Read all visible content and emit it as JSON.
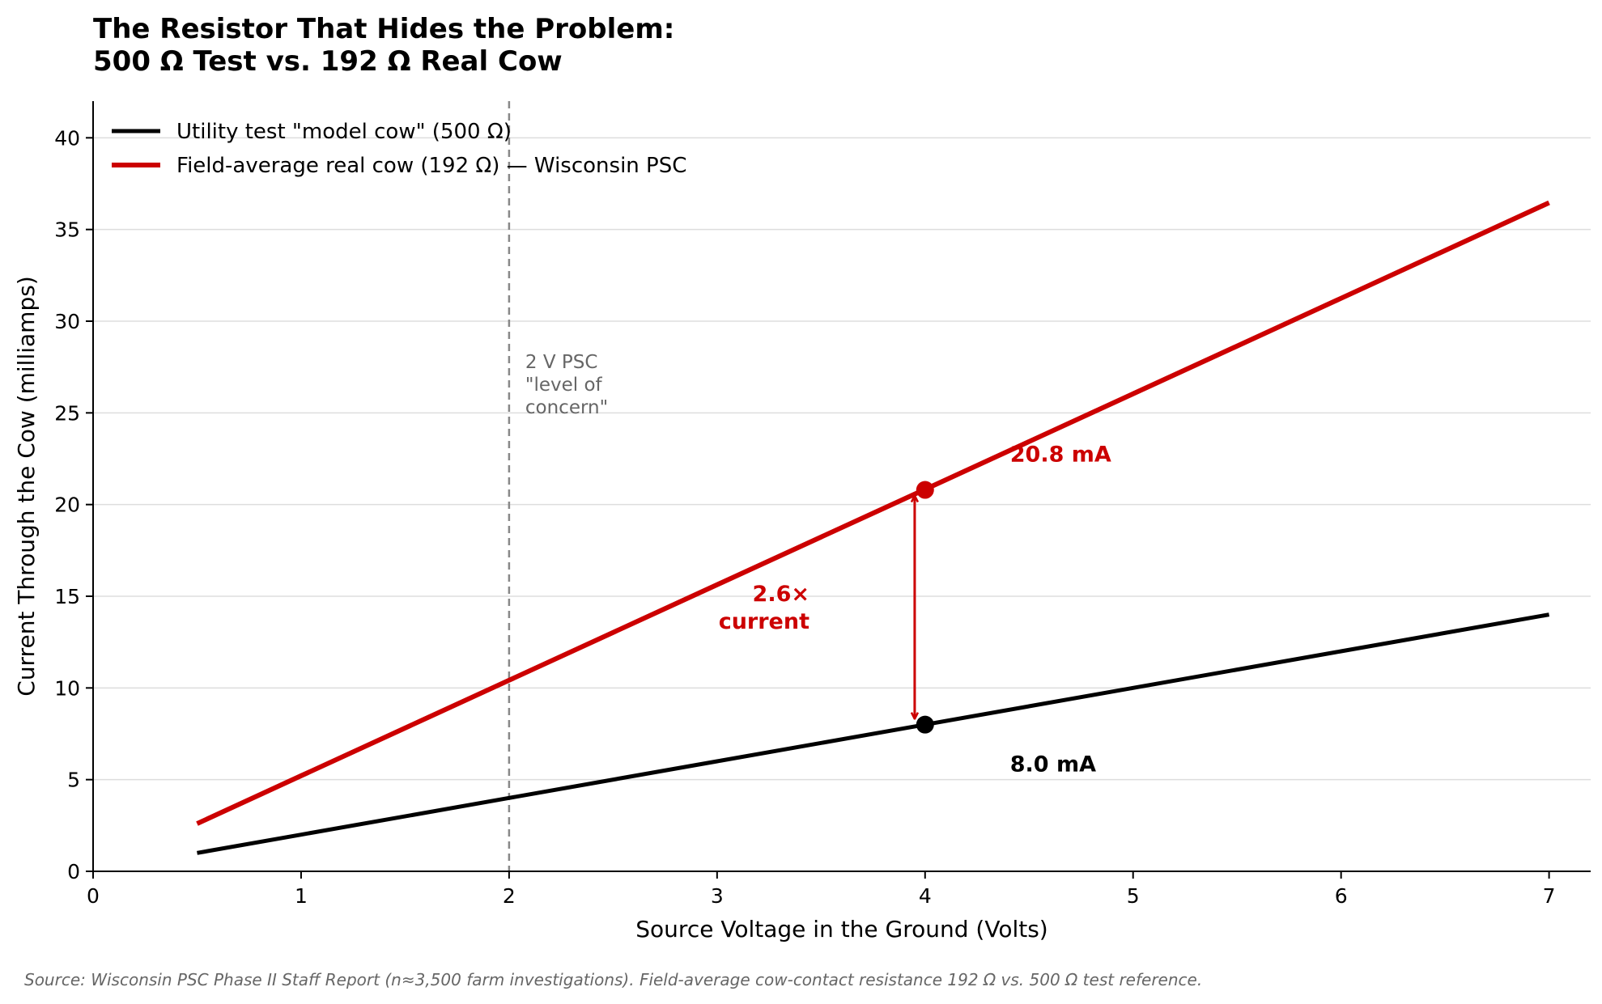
{
  "chart_data": {
    "type": "line",
    "title_lines": [
      "The Resistor That Hides the Problem:",
      "500 Ω Test vs. 192 Ω Real Cow"
    ],
    "xlabel": "Source Voltage in the Ground (Volts)",
    "ylabel": "Current Through the Cow (milliamps)",
    "xlim": [
      0,
      7.2
    ],
    "ylim": [
      0,
      42
    ],
    "x_ticks": [
      0,
      1,
      2,
      3,
      4,
      5,
      6,
      7
    ],
    "y_ticks": [
      0,
      5,
      10,
      15,
      20,
      25,
      30,
      35,
      40
    ],
    "grid": "horizontal",
    "legend_position": "top-left",
    "series": [
      {
        "name": "Utility test \"model cow\" (500 Ω)",
        "color": "#000000",
        "x": [
          0.5,
          1,
          2,
          3,
          4,
          5,
          6,
          7
        ],
        "y": [
          1.0,
          2.0,
          4.0,
          6.0,
          8.0,
          10.0,
          12.0,
          14.0
        ]
      },
      {
        "name": "Field-average real cow (192 Ω) — Wisconsin PSC",
        "color": "#cc0000",
        "x": [
          0.5,
          1,
          2,
          3,
          4,
          5,
          6,
          7
        ],
        "y": [
          2.6,
          5.21,
          10.42,
          15.63,
          20.83,
          26.04,
          31.25,
          36.46
        ]
      }
    ],
    "reference_line": {
      "x": 2,
      "color": "#888888",
      "label_lines": [
        "2 V PSC",
        "\"level of",
        "concern\""
      ]
    },
    "highlight_points": [
      {
        "x": 4,
        "y": 20.8,
        "label": "20.8 mA",
        "color": "#cc0000"
      },
      {
        "x": 4,
        "y": 8.0,
        "label": "8.0 mA",
        "color": "#000000"
      }
    ],
    "ratio_annotation": {
      "x": 3.95,
      "from": 8.0,
      "to": 20.8,
      "label_lines": [
        "2.6×",
        "current"
      ],
      "color": "#cc0000"
    },
    "source_note": "Source: Wisconsin PSC Phase II Staff Report (n≈3,500 farm investigations). Field-average cow-contact resistance 192 Ω vs. 500 Ω test reference."
  }
}
